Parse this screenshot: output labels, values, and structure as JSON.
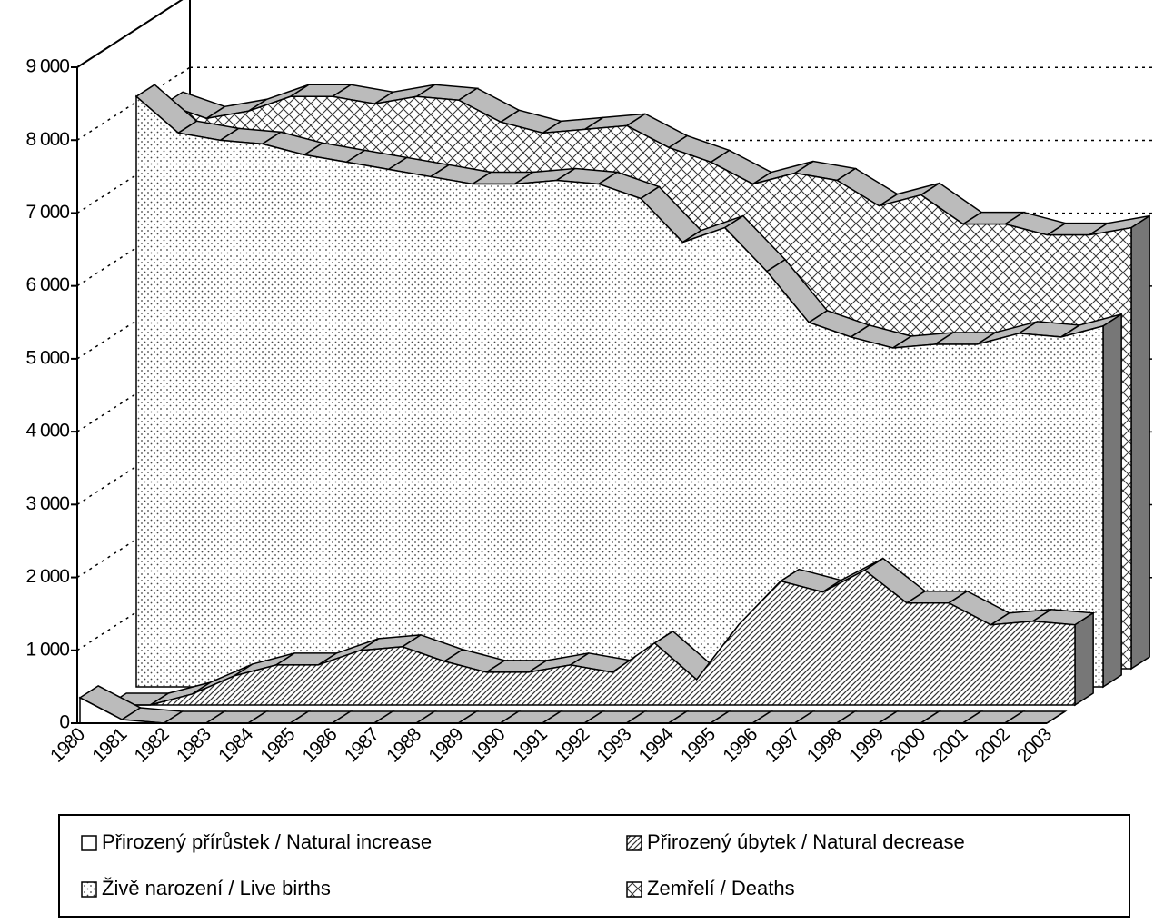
{
  "chart_data": {
    "type": "area3d",
    "categories": [
      "1980",
      "1981",
      "1982",
      "1983",
      "1984",
      "1985",
      "1986",
      "1987",
      "1988",
      "1989",
      "1990",
      "1991",
      "1992",
      "1993",
      "1994",
      "1995",
      "1996",
      "1997",
      "1998",
      "1999",
      "2000",
      "2001",
      "2002",
      "2003"
    ],
    "series": [
      {
        "name": "Přirozený přírůstek / Natural increase",
        "color": "#ffffff",
        "pattern": "none",
        "values": [
          350,
          50,
          0,
          0,
          0,
          0,
          0,
          0,
          0,
          0,
          0,
          0,
          0,
          0,
          0,
          0,
          0,
          0,
          0,
          0,
          0,
          0,
          0,
          0
        ]
      },
      {
        "name": "Přirozený úbytek / Natural decrease",
        "color": "#ffffff",
        "pattern": "hatch",
        "values": [
          0,
          0,
          150,
          400,
          550,
          550,
          750,
          800,
          600,
          450,
          450,
          550,
          450,
          850,
          350,
          1100,
          1700,
          1550,
          1850,
          1400,
          1400,
          1100,
          1150,
          1100
        ]
      },
      {
        "name": "Živě narození / Live births",
        "color": "#ffffff",
        "pattern": "dots",
        "values": [
          8100,
          7600,
          7500,
          7450,
          7300,
          7200,
          7100,
          7000,
          6900,
          6900,
          6950,
          6900,
          6700,
          6100,
          6300,
          5700,
          5000,
          4800,
          4650,
          4700,
          4700,
          4850,
          4800,
          4950
        ]
      },
      {
        "name": "Zemřelí / Deaths",
        "color": "#ffffff",
        "pattern": "cross",
        "values": [
          7750,
          7550,
          7650,
          7850,
          7850,
          7750,
          7850,
          7800,
          7500,
          7350,
          7400,
          7450,
          7150,
          6950,
          6650,
          6800,
          6700,
          6350,
          6500,
          6100,
          6100,
          5950,
          5950,
          6050
        ]
      }
    ],
    "ylim": [
      0,
      9000
    ],
    "yticks": [
      {
        "value": 0,
        "label": "0"
      },
      {
        "value": 1000,
        "label": "1 000"
      },
      {
        "value": 2000,
        "label": "2 000"
      },
      {
        "value": 3000,
        "label": "3 000"
      },
      {
        "value": 4000,
        "label": "4 000"
      },
      {
        "value": 5000,
        "label": "5 000"
      },
      {
        "value": 6000,
        "label": "6 000"
      },
      {
        "value": 7000,
        "label": "7 000"
      },
      {
        "value": 8000,
        "label": "8 000"
      },
      {
        "value": 9000,
        "label": "9 000"
      }
    ],
    "grid": true
  }
}
